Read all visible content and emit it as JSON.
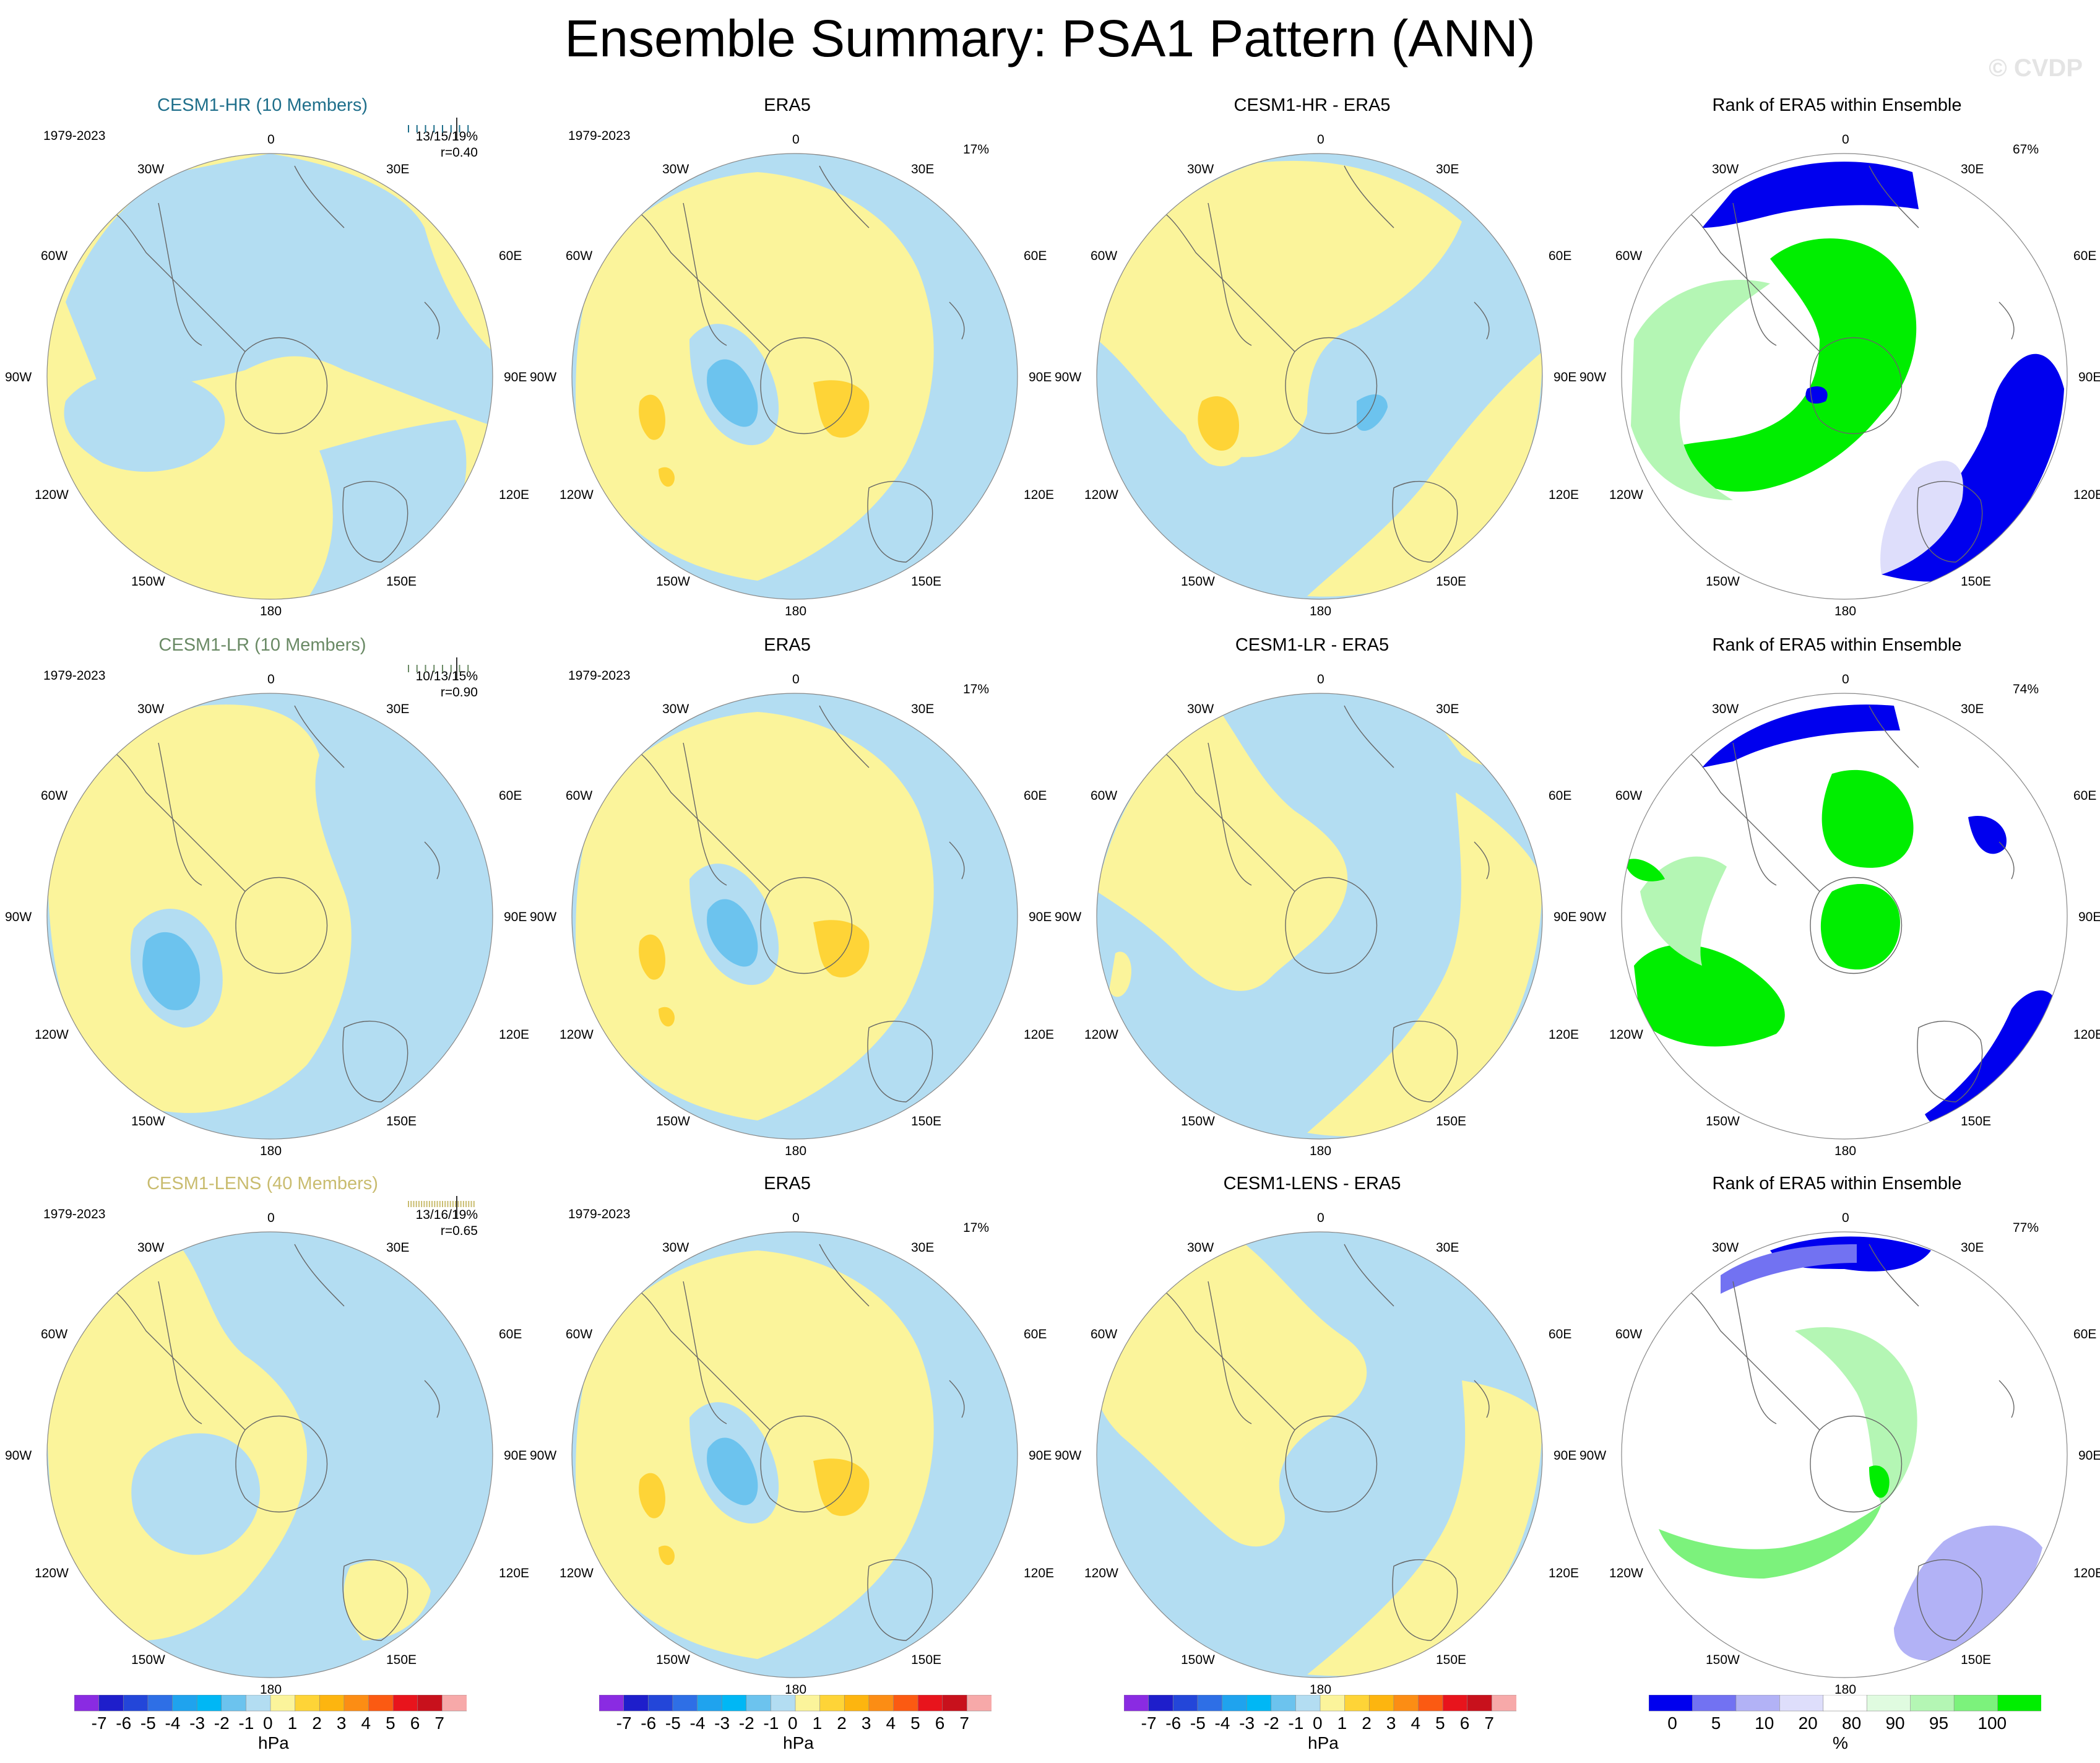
{
  "title": "Ensemble Summary: PSA1 Pattern (ANN)",
  "watermark": "© CVDP",
  "lon_labels": {
    "top": "0",
    "top_left": "30W",
    "top_right": "30E",
    "upper_left": "60W",
    "upper_right": "60E",
    "left": "90W",
    "right": "90E",
    "lower_left": "120W",
    "lower_right": "120E",
    "bottom_left": "150W",
    "bottom_right": "150E",
    "bottom": "180"
  },
  "colors": {
    "negative_fill": "#b3ddf2",
    "positive_fill": "#fbf49b",
    "negative_strong": "#6cc3ee",
    "positive_strong": "#fed437",
    "rank_low": "#0000ee",
    "rank_high": "#00ee00",
    "coast": "#666666",
    "model_title_hr": "#1f6f8b",
    "model_title_lr": "#6a8a65",
    "model_title_lens": "#c9bc6f"
  },
  "rows": [
    {
      "model": {
        "title": "CESM1-HR (10 Members)",
        "period": "1979-2023",
        "stats1": "13/15/19%",
        "stats2": "r=0.40"
      },
      "obs": {
        "title": "ERA5",
        "period": "1979-2023",
        "pct": "17%"
      },
      "diff": {
        "title": "CESM1-HR - ERA5"
      },
      "rank": {
        "title": "Rank of ERA5 within Ensemble",
        "pct": "67%"
      }
    },
    {
      "model": {
        "title": "CESM1-LR (10 Members)",
        "period": "1979-2023",
        "stats1": "10/13/15%",
        "stats2": "r=0.90"
      },
      "obs": {
        "title": "ERA5",
        "period": "1979-2023",
        "pct": "17%"
      },
      "diff": {
        "title": "CESM1-LR - ERA5"
      },
      "rank": {
        "title": "Rank of ERA5 within Ensemble",
        "pct": "74%"
      }
    },
    {
      "model": {
        "title": "CESM1-LENS (40 Members)",
        "period": "1979-2023",
        "stats1": "13/16/19%",
        "stats2": "r=0.65"
      },
      "obs": {
        "title": "ERA5",
        "period": "1979-2023",
        "pct": "17%"
      },
      "diff": {
        "title": "CESM1-LENS - ERA5"
      },
      "rank": {
        "title": "Rank of ERA5 within Ensemble",
        "pct": "77%"
      }
    }
  ],
  "colorbars": {
    "hpa": {
      "unit": "hPa",
      "labels": [
        "-7",
        "-6",
        "-5",
        "-4",
        "-3",
        "-2",
        "-1",
        "0",
        "1",
        "2",
        "3",
        "4",
        "5",
        "6",
        "7"
      ],
      "colors": [
        "#8a2be2",
        "#1e1ecb",
        "#2346d9",
        "#2e6fe6",
        "#1fa3ee",
        "#00b7f5",
        "#6cc3ee",
        "#b3ddf2",
        "#fbf49b",
        "#fed437",
        "#fdb50f",
        "#fc8d14",
        "#fb5a12",
        "#e8141c",
        "#c8111c",
        "#f7a9a9"
      ]
    },
    "rank": {
      "unit": "%",
      "labels": [
        "0",
        "5",
        "10",
        "20",
        "80",
        "90",
        "95",
        "100"
      ],
      "colors": [
        "#0000ee",
        "#7272f2",
        "#b2b2f6",
        "#dedefb",
        "#ffffff",
        "#e0fbe0",
        "#b4f6b4",
        "#7cf27c",
        "#00ee00"
      ]
    }
  },
  "chart_data": [
    {
      "type": "heatmap",
      "title": "CESM1-HR (10 Members)",
      "projection": "south-polar stereographic",
      "color_scale": "hPa",
      "levels": [
        -7,
        -6,
        -5,
        -4,
        -3,
        -2,
        -1,
        0,
        1,
        2,
        3,
        4,
        5,
        6,
        7
      ]
    },
    {
      "type": "heatmap",
      "title": "ERA5",
      "projection": "south-polar stereographic",
      "color_scale": "hPa"
    },
    {
      "type": "heatmap",
      "title": "CESM1-HR - ERA5",
      "projection": "south-polar stereographic",
      "color_scale": "hPa"
    },
    {
      "type": "heatmap",
      "title": "Rank of ERA5 within Ensemble",
      "projection": "south-polar stereographic",
      "color_scale": "%",
      "levels": [
        0,
        5,
        10,
        20,
        80,
        90,
        95,
        100
      ]
    },
    {
      "type": "heatmap",
      "title": "CESM1-LR (10 Members)",
      "projection": "south-polar stereographic",
      "color_scale": "hPa"
    },
    {
      "type": "heatmap",
      "title": "ERA5",
      "projection": "south-polar stereographic",
      "color_scale": "hPa"
    },
    {
      "type": "heatmap",
      "title": "CESM1-LR - ERA5",
      "projection": "south-polar stereographic",
      "color_scale": "hPa"
    },
    {
      "type": "heatmap",
      "title": "Rank of ERA5 within Ensemble",
      "projection": "south-polar stereographic",
      "color_scale": "%"
    },
    {
      "type": "heatmap",
      "title": "CESM1-LENS (40 Members)",
      "projection": "south-polar stereographic",
      "color_scale": "hPa"
    },
    {
      "type": "heatmap",
      "title": "ERA5",
      "projection": "south-polar stereographic",
      "color_scale": "hPa"
    },
    {
      "type": "heatmap",
      "title": "CESM1-LENS - ERA5",
      "projection": "south-polar stereographic",
      "color_scale": "hPa"
    },
    {
      "type": "heatmap",
      "title": "Rank of ERA5 within Ensemble",
      "projection": "south-polar stereographic",
      "color_scale": "%"
    }
  ]
}
